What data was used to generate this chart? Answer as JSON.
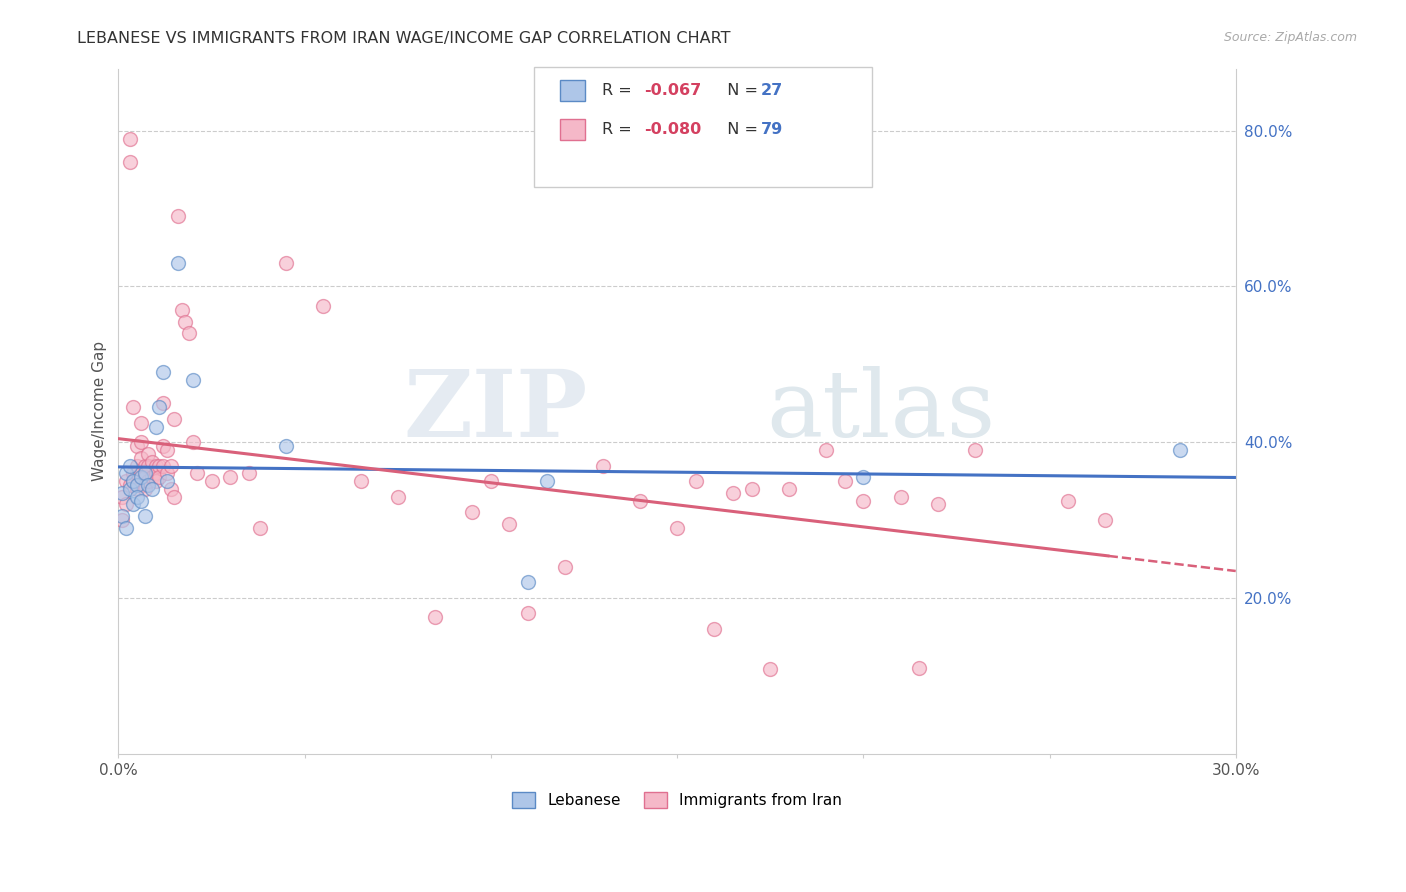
{
  "title": "LEBANESE VS IMMIGRANTS FROM IRAN WAGE/INCOME GAP CORRELATION CHART",
  "source": "Source: ZipAtlas.com",
  "ylabel": "Wage/Income Gap",
  "xlim": [
    0.0,
    0.3
  ],
  "ylim": [
    0.0,
    0.88
  ],
  "xticks": [
    0.0,
    0.05,
    0.1,
    0.15,
    0.2,
    0.25,
    0.3
  ],
  "yticks_right": [
    0.2,
    0.4,
    0.6,
    0.8
  ],
  "yticklabels_right": [
    "20.0%",
    "40.0%",
    "60.0%",
    "80.0%"
  ],
  "legend": {
    "series1_label": "Lebanese",
    "series2_label": "Immigrants from Iran",
    "R1": "-0.067",
    "N1": "27",
    "R2": "-0.080",
    "N2": "79"
  },
  "watermark_zip": "ZIP",
  "watermark_atlas": "atlas",
  "blue_color": "#aec6e8",
  "blue_edge_color": "#5b8ac5",
  "pink_color": "#f5b8c8",
  "pink_edge_color": "#e07090",
  "blue_line_color": "#4472C4",
  "pink_line_color": "#d9607a",
  "scatter_size": 100,
  "scatter_alpha": 0.65,
  "lebanese_x": [
    0.001,
    0.001,
    0.002,
    0.002,
    0.003,
    0.003,
    0.004,
    0.004,
    0.005,
    0.005,
    0.006,
    0.006,
    0.007,
    0.007,
    0.008,
    0.009,
    0.01,
    0.011,
    0.012,
    0.013,
    0.016,
    0.02,
    0.045,
    0.11,
    0.115,
    0.2,
    0.285
  ],
  "lebanese_y": [
    0.335,
    0.305,
    0.36,
    0.29,
    0.37,
    0.34,
    0.35,
    0.32,
    0.345,
    0.33,
    0.355,
    0.325,
    0.36,
    0.305,
    0.345,
    0.34,
    0.42,
    0.445,
    0.49,
    0.35,
    0.63,
    0.48,
    0.395,
    0.22,
    0.35,
    0.355,
    0.39
  ],
  "iran_x": [
    0.001,
    0.001,
    0.002,
    0.002,
    0.003,
    0.003,
    0.003,
    0.004,
    0.004,
    0.004,
    0.005,
    0.005,
    0.005,
    0.005,
    0.006,
    0.006,
    0.006,
    0.006,
    0.007,
    0.007,
    0.007,
    0.007,
    0.008,
    0.008,
    0.008,
    0.009,
    0.009,
    0.01,
    0.01,
    0.01,
    0.011,
    0.011,
    0.012,
    0.012,
    0.012,
    0.013,
    0.013,
    0.014,
    0.014,
    0.015,
    0.015,
    0.016,
    0.017,
    0.018,
    0.019,
    0.02,
    0.021,
    0.025,
    0.03,
    0.035,
    0.038,
    0.045,
    0.055,
    0.065,
    0.075,
    0.085,
    0.095,
    0.1,
    0.105,
    0.11,
    0.12,
    0.13,
    0.14,
    0.15,
    0.155,
    0.16,
    0.165,
    0.17,
    0.175,
    0.18,
    0.19,
    0.195,
    0.2,
    0.21,
    0.215,
    0.22,
    0.23,
    0.255,
    0.265
  ],
  "iran_y": [
    0.33,
    0.3,
    0.35,
    0.32,
    0.345,
    0.79,
    0.76,
    0.36,
    0.35,
    0.445,
    0.37,
    0.36,
    0.34,
    0.395,
    0.38,
    0.36,
    0.4,
    0.425,
    0.37,
    0.355,
    0.345,
    0.34,
    0.385,
    0.37,
    0.35,
    0.375,
    0.355,
    0.37,
    0.36,
    0.35,
    0.37,
    0.355,
    0.395,
    0.37,
    0.45,
    0.36,
    0.39,
    0.37,
    0.34,
    0.33,
    0.43,
    0.69,
    0.57,
    0.555,
    0.54,
    0.4,
    0.36,
    0.35,
    0.355,
    0.36,
    0.29,
    0.63,
    0.575,
    0.35,
    0.33,
    0.175,
    0.31,
    0.35,
    0.295,
    0.18,
    0.24,
    0.37,
    0.325,
    0.29,
    0.35,
    0.16,
    0.335,
    0.34,
    0.108,
    0.34,
    0.39,
    0.35,
    0.325,
    0.33,
    0.11,
    0.32,
    0.39,
    0.325,
    0.3
  ]
}
